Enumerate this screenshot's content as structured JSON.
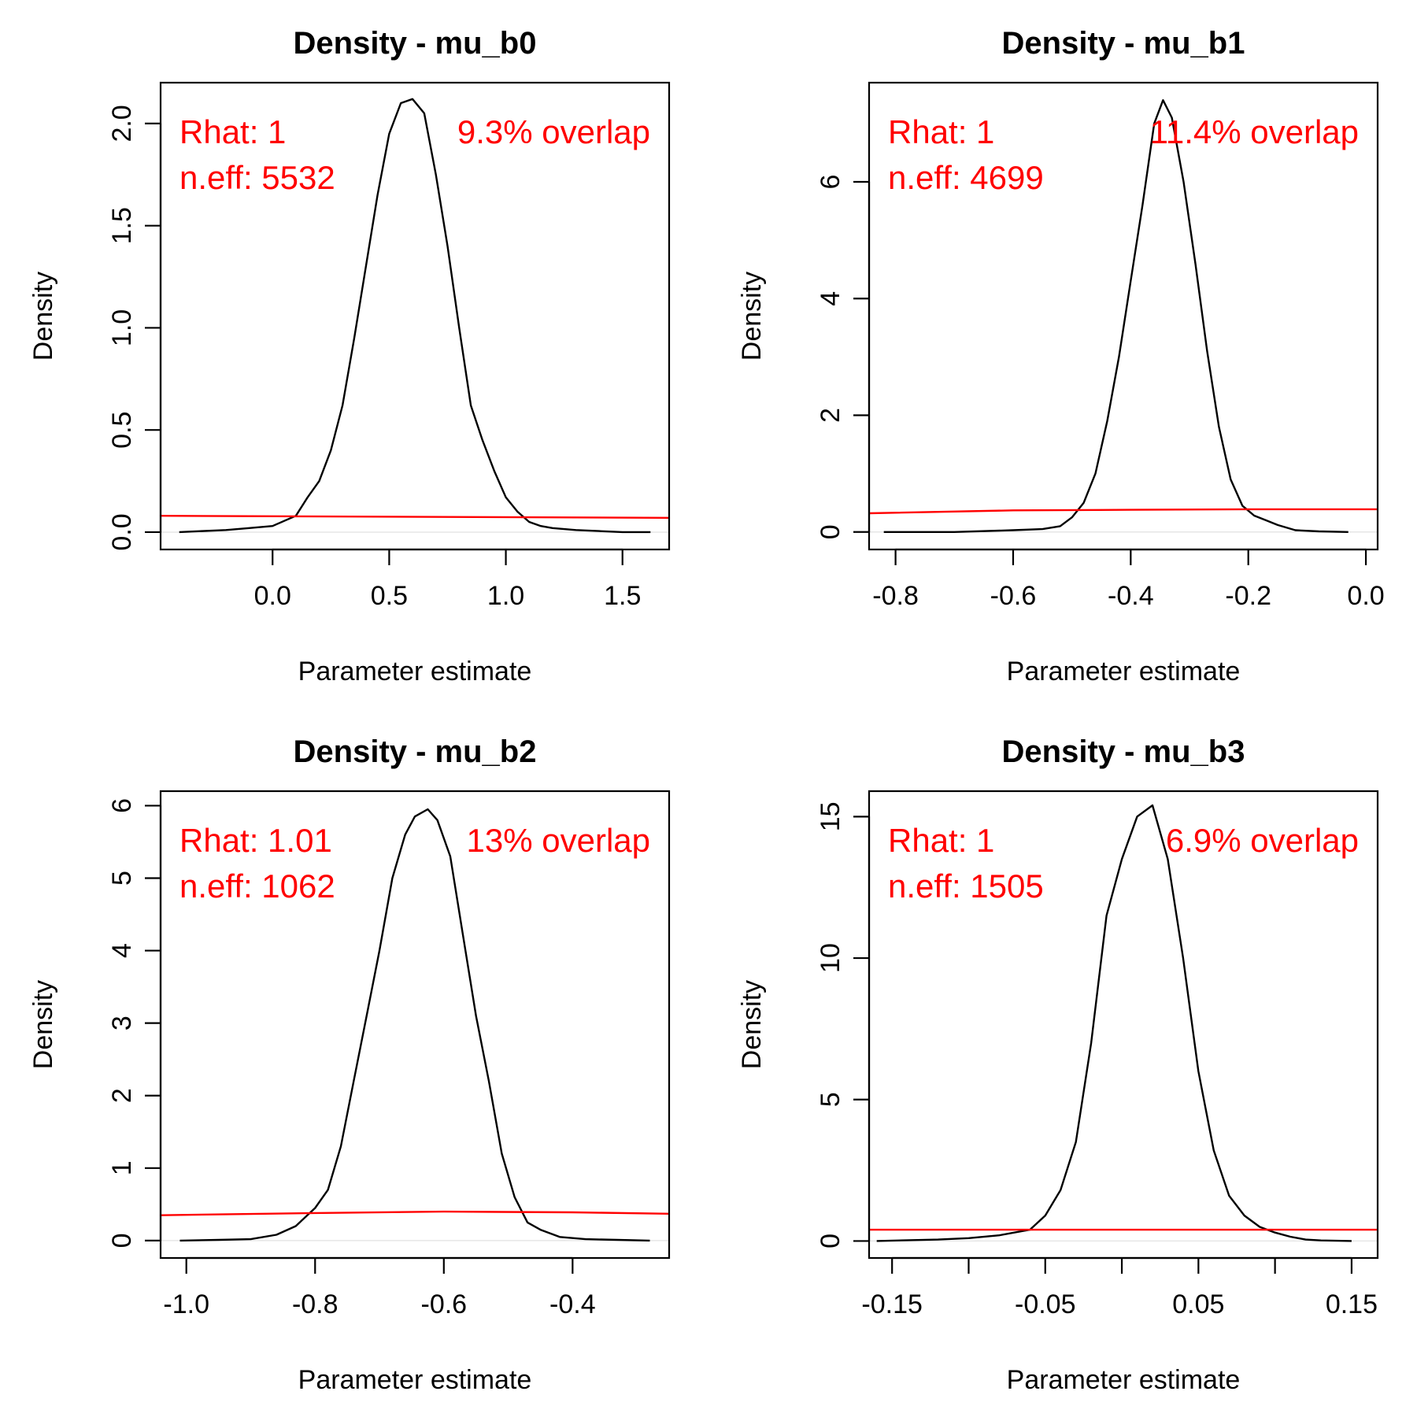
{
  "chart_data": [
    {
      "type": "line",
      "title": "Density - mu_b0",
      "xlabel": "Parameter estimate",
      "ylabel": "Density",
      "xlim": [
        -0.48,
        1.7
      ],
      "ylim": [
        -0.085,
        2.2
      ],
      "xticks": [
        0.0,
        0.5,
        1.0,
        1.5
      ],
      "xtick_labels": [
        "0.0",
        "0.5",
        "1.0",
        "1.5"
      ],
      "yticks": [
        0.0,
        0.5,
        1.0,
        1.5,
        2.0
      ],
      "ytick_labels": [
        "0.0",
        "0.5",
        "1.0",
        "1.5",
        "2.0"
      ],
      "annotations": {
        "rhat": "Rhat: 1",
        "neff": "n.eff: 5532",
        "overlap": "9.3% overlap"
      },
      "colors": {
        "posterior": "#000000",
        "prior": "#ff0000"
      },
      "series": [
        {
          "x": [
            -0.4,
            -0.2,
            -0.1,
            0.0,
            0.1,
            0.15,
            0.2,
            0.25,
            0.3,
            0.35,
            0.4,
            0.45,
            0.5,
            0.55,
            0.6,
            0.65,
            0.7,
            0.75,
            0.8,
            0.85,
            0.9,
            0.95,
            1.0,
            1.05,
            1.1,
            1.15,
            1.2,
            1.3,
            1.4,
            1.5,
            1.62
          ],
          "y": [
            0.0,
            0.01,
            0.02,
            0.03,
            0.08,
            0.17,
            0.25,
            0.4,
            0.62,
            0.95,
            1.3,
            1.65,
            1.95,
            2.1,
            2.12,
            2.05,
            1.75,
            1.4,
            1.0,
            0.62,
            0.45,
            0.3,
            0.17,
            0.1,
            0.05,
            0.03,
            0.02,
            0.01,
            0.005,
            0.0,
            0.0
          ]
        },
        {
          "x": [
            -0.48,
            1.7
          ],
          "y": [
            0.08,
            0.07
          ]
        }
      ]
    },
    {
      "type": "line",
      "title": "Density - mu_b1",
      "xlabel": "Parameter estimate",
      "ylabel": "Density",
      "xlim": [
        -0.845,
        0.02
      ],
      "ylim": [
        -0.3,
        7.7
      ],
      "xticks": [
        -0.8,
        -0.6,
        -0.4,
        -0.2,
        0.0
      ],
      "xtick_labels": [
        "-0.8",
        "-0.6",
        "-0.4",
        "-0.2",
        "0.0"
      ],
      "yticks": [
        0,
        2,
        4,
        6
      ],
      "ytick_labels": [
        "0",
        "2",
        "4",
        "6"
      ],
      "annotations": {
        "rhat": "Rhat: 1",
        "neff": "n.eff: 4699",
        "overlap": "11.4% overlap"
      },
      "colors": {
        "posterior": "#000000",
        "prior": "#ff0000"
      },
      "series": [
        {
          "x": [
            -0.82,
            -0.7,
            -0.6,
            -0.55,
            -0.52,
            -0.5,
            -0.48,
            -0.46,
            -0.44,
            -0.42,
            -0.4,
            -0.38,
            -0.36,
            -0.345,
            -0.33,
            -0.31,
            -0.29,
            -0.27,
            -0.25,
            -0.23,
            -0.21,
            -0.19,
            -0.17,
            -0.15,
            -0.12,
            -0.08,
            -0.03
          ],
          "y": [
            0.0,
            0.0,
            0.03,
            0.05,
            0.1,
            0.25,
            0.5,
            1.0,
            1.9,
            3.0,
            4.3,
            5.6,
            7.0,
            7.4,
            7.1,
            6.0,
            4.6,
            3.1,
            1.8,
            0.9,
            0.45,
            0.28,
            0.2,
            0.12,
            0.03,
            0.01,
            0.0
          ]
        },
        {
          "x": [
            -0.845,
            -0.6,
            -0.4,
            -0.2,
            0.02
          ],
          "y": [
            0.32,
            0.37,
            0.38,
            0.39,
            0.39
          ]
        }
      ]
    },
    {
      "type": "line",
      "title": "Density - mu_b2",
      "xlabel": "Parameter estimate",
      "ylabel": "Density",
      "xlim": [
        -1.04,
        -0.25
      ],
      "ylim": [
        -0.24,
        6.2
      ],
      "xticks": [
        -1.0,
        -0.8,
        -0.6,
        -0.4
      ],
      "xtick_labels": [
        "-1.0",
        "-0.8",
        "-0.6",
        "-0.4"
      ],
      "yticks": [
        0,
        1,
        2,
        3,
        4,
        5,
        6
      ],
      "ytick_labels": [
        "0",
        "1",
        "2",
        "3",
        "4",
        "5",
        "6"
      ],
      "annotations": {
        "rhat": "Rhat: 1.01",
        "neff": "n.eff: 1062",
        "overlap": "13% overlap"
      },
      "colors": {
        "posterior": "#000000",
        "prior": "#ff0000"
      },
      "series": [
        {
          "x": [
            -1.01,
            -0.95,
            -0.9,
            -0.86,
            -0.83,
            -0.8,
            -0.78,
            -0.76,
            -0.74,
            -0.72,
            -0.7,
            -0.68,
            -0.66,
            -0.645,
            -0.625,
            -0.61,
            -0.59,
            -0.57,
            -0.55,
            -0.53,
            -0.51,
            -0.49,
            -0.47,
            -0.45,
            -0.42,
            -0.38,
            -0.33,
            -0.28
          ],
          "y": [
            0.0,
            0.01,
            0.02,
            0.08,
            0.2,
            0.45,
            0.7,
            1.3,
            2.2,
            3.1,
            4.0,
            5.0,
            5.6,
            5.85,
            5.95,
            5.8,
            5.3,
            4.2,
            3.1,
            2.2,
            1.2,
            0.6,
            0.25,
            0.15,
            0.05,
            0.02,
            0.01,
            0.0
          ]
        },
        {
          "x": [
            -1.04,
            -0.8,
            -0.6,
            -0.4,
            -0.25
          ],
          "y": [
            0.35,
            0.38,
            0.4,
            0.39,
            0.37
          ]
        }
      ]
    },
    {
      "type": "line",
      "title": "Density - mu_b3",
      "xlabel": "Parameter estimate",
      "ylabel": "Density",
      "xlim": [
        -0.165,
        0.167
      ],
      "ylim": [
        -0.6,
        15.9
      ],
      "xticks": [
        -0.15,
        -0.1,
        -0.05,
        0.0,
        0.05,
        0.1,
        0.15
      ],
      "xtick_labels": [
        "-0.15",
        "",
        "-0.05",
        "",
        "0.05",
        "",
        "0.15"
      ],
      "yticks": [
        0,
        5,
        10,
        15
      ],
      "ytick_labels": [
        "0",
        "5",
        "10",
        "15"
      ],
      "annotations": {
        "rhat": "Rhat: 1",
        "neff": "n.eff: 1505",
        "overlap": "6.9% overlap"
      },
      "colors": {
        "posterior": "#000000",
        "prior": "#ff0000"
      },
      "series": [
        {
          "x": [
            -0.16,
            -0.12,
            -0.1,
            -0.08,
            -0.06,
            -0.05,
            -0.04,
            -0.03,
            -0.02,
            -0.01,
            0.0,
            0.01,
            0.02,
            0.03,
            0.04,
            0.05,
            0.06,
            0.07,
            0.08,
            0.09,
            0.1,
            0.11,
            0.12,
            0.13,
            0.15
          ],
          "y": [
            0.0,
            0.05,
            0.1,
            0.2,
            0.4,
            0.9,
            1.8,
            3.5,
            7.0,
            11.5,
            13.5,
            15.0,
            15.4,
            13.5,
            10.0,
            6.0,
            3.2,
            1.6,
            0.9,
            0.5,
            0.3,
            0.15,
            0.05,
            0.02,
            0.0
          ]
        },
        {
          "x": [
            -0.165,
            0.167
          ],
          "y": [
            0.4,
            0.4
          ]
        }
      ]
    }
  ]
}
